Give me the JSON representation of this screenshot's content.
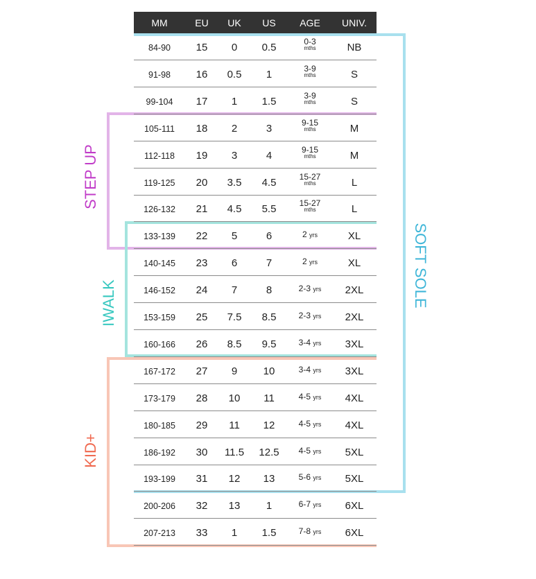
{
  "headers": [
    "MM",
    "EU",
    "UK",
    "US",
    "AGE",
    "UNIV."
  ],
  "rows": [
    [
      "84-90",
      "15",
      "0",
      "0.5",
      "0-3",
      "mths",
      "NB"
    ],
    [
      "91-98",
      "16",
      "0.5",
      "1",
      "3-9",
      "mths",
      "S"
    ],
    [
      "99-104",
      "17",
      "1",
      "1.5",
      "3-9",
      "mths",
      "S"
    ],
    [
      "105-111",
      "18",
      "2",
      "3",
      "9-15",
      "mths",
      "M"
    ],
    [
      "112-118",
      "19",
      "3",
      "4",
      "9-15",
      "mths",
      "M"
    ],
    [
      "119-125",
      "20",
      "3.5",
      "4.5",
      "15-27",
      "mths",
      "L"
    ],
    [
      "126-132",
      "21",
      "4.5",
      "5.5",
      "15-27",
      "mths",
      "L"
    ],
    [
      "133-139",
      "22",
      "5",
      "6",
      "2",
      "yrs",
      "XL"
    ],
    [
      "140-145",
      "23",
      "6",
      "7",
      "2",
      "yrs",
      "XL"
    ],
    [
      "146-152",
      "24",
      "7",
      "8",
      "2-3",
      "yrs",
      "2XL"
    ],
    [
      "153-159",
      "25",
      "7.5",
      "8.5",
      "2-3",
      "yrs",
      "2XL"
    ],
    [
      "160-166",
      "26",
      "8.5",
      "9.5",
      "3-4",
      "yrs",
      "3XL"
    ],
    [
      "167-172",
      "27",
      "9",
      "10",
      "3-4",
      "yrs",
      "3XL"
    ],
    [
      "173-179",
      "28",
      "10",
      "11",
      "4-5",
      "yrs",
      "4XL"
    ],
    [
      "180-185",
      "29",
      "11",
      "12",
      "4-5",
      "yrs",
      "4XL"
    ],
    [
      "186-192",
      "30",
      "11.5",
      "12.5",
      "4-5",
      "yrs",
      "5XL"
    ],
    [
      "193-199",
      "31",
      "12",
      "13",
      "5-6",
      "yrs",
      "5XL"
    ],
    [
      "200-206",
      "32",
      "13",
      "1",
      "6-7",
      "yrs",
      "6XL"
    ],
    [
      "207-213",
      "33",
      "1",
      "1.5",
      "7-8",
      "yrs",
      "6XL"
    ]
  ],
  "groups": {
    "soft_sole": {
      "label": "SOFT SOLE",
      "color": "#a8e0ee",
      "text_color": "#3fb6d8"
    },
    "step_up": {
      "label": "STEP UP",
      "color": "#e2b4e8",
      "text_color": "#c13cc8"
    },
    "iwalk": {
      "label": "IWALK",
      "color": "#a4e4de",
      "text_color": "#38c8c0"
    },
    "kid_plus": {
      "label": "KID+",
      "color": "#f8c6b6",
      "text_color": "#f06a50"
    }
  }
}
